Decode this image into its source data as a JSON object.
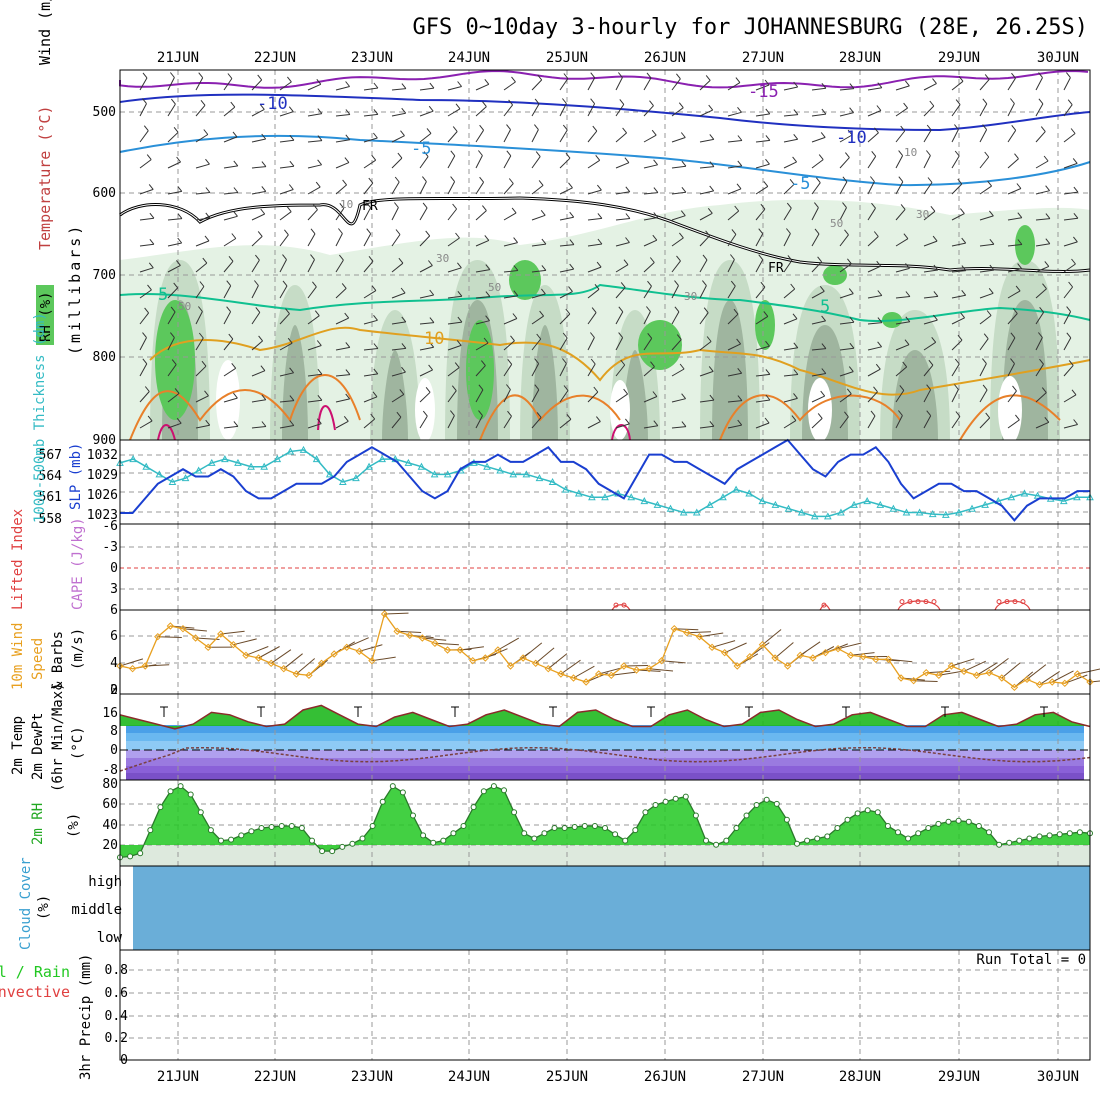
{
  "title": "GFS 0~10day 3-hourly for JOHANNESBURG (28E, 26.25S)",
  "dates": [
    "21JUN",
    "22JUN",
    "23JUN",
    "24JUN",
    "25JUN",
    "26JUN",
    "27JUN",
    "28JUN",
    "29JUN",
    "30JUN"
  ],
  "colors": {
    "rh_light": "#e4f2e4",
    "rh_mid": "#c6dcc6",
    "rh_dark": "#9fb59f",
    "rh_bright": "#5cc85c",
    "slp": "#1a3fd0",
    "thickness": "#33bbc4",
    "wind_speed": "#e8a020",
    "temp_fill": "#1fb81f",
    "rh_fill": "#22c822",
    "cloud": "#6aaed8",
    "lifted": "#e04040",
    "cape": "#c070d0"
  },
  "panels": {
    "upper": {
      "ylabel_rh": "RH (%)",
      "ylabel_temp": "Temperature (°C)",
      "ylabel_wind": "Wind (m/s)",
      "ylabel_units": "(millibars)",
      "yticks": [
        500,
        600,
        700,
        800,
        900
      ],
      "contour_labels": {
        "m15": "-15",
        "m10a": "-10",
        "m10b": "-10",
        "m5a": "-5",
        "m5b": "-5",
        "fr1": "FR",
        "fr2": "FR",
        "p5a": "5",
        "p5b": "5",
        "p10": "10",
        "rh50a": "50",
        "rh50b": "50",
        "rh30a": "30",
        "rh30b": "30",
        "rh10a": "10",
        "rh10b": "10",
        "rh50c": "50",
        "rh30c": "30"
      }
    },
    "slp": {
      "ylabel_thick": "1000-500mb Thickness (dm)",
      "ylabel_slp": "SLP (mb)",
      "yticks_slp": [
        "1032",
        "1029",
        "1026",
        "1023"
      ],
      "yticks_thick": [
        "567",
        "564",
        "561",
        "558"
      ]
    },
    "lifted": {
      "ylabel_li": "Lifted Index",
      "ylabel_cape": "CAPE (J/kg)",
      "yticks": [
        "-6",
        "-3",
        "0",
        "3",
        "6"
      ]
    },
    "wind10": {
      "ylabel1": "10m Wind",
      "ylabel2": "Speed",
      "ylabel3": "& Barbs",
      "ylabel_units": "(m/s)",
      "yticks": [
        "6",
        "4",
        "2",
        "0"
      ]
    },
    "temp2m": {
      "ylabel1": "2m Temp",
      "ylabel2": "2m DewPt",
      "ylabel3": "(6hr Min/Max)",
      "ylabel_units": "(°C)",
      "yticks": [
        "16",
        "8",
        "0",
        "-8"
      ]
    },
    "rh2m": {
      "ylabel": "2m RH",
      "ylabel_units": "(%)",
      "yticks": [
        "80",
        "60",
        "40",
        "20"
      ]
    },
    "cloud": {
      "ylabel": "Cloud Cover",
      "ylabel_units": "(%)",
      "levels": [
        "high",
        "middle",
        "low"
      ]
    },
    "precip": {
      "ylabel1": "Total / Rain",
      "ylabel2": "Convective",
      "ylabel3": "3hr Precip (mm)",
      "run_total": "Run Total = 0",
      "yticks": [
        "0.8",
        "0.6",
        "0.4",
        "0.2",
        "0"
      ]
    }
  },
  "chart_data": [
    {
      "type": "line",
      "title": "SLP (mb)",
      "x_start": "20JUN 12Z",
      "x_step_hours": 6,
      "ylim": [
        1021.5,
        1033
      ],
      "values": [
        1023,
        1023,
        1025,
        1027,
        1028,
        1029,
        1028,
        1028,
        1029,
        1028,
        1026,
        1025,
        1025,
        1026,
        1027,
        1027,
        1027,
        1028,
        1030,
        1031,
        1032,
        1031,
        1030,
        1028,
        1026,
        1025,
        1026,
        1029,
        1030,
        1030,
        1031,
        1030,
        1030,
        1031,
        1032,
        1030,
        1030,
        1029,
        1027,
        1026,
        1025,
        1028,
        1031,
        1031,
        1030,
        1030,
        1029,
        1028,
        1027,
        1029,
        1030,
        1031,
        1032,
        1033,
        1031,
        1029,
        1028,
        1030,
        1031,
        1031,
        1032,
        1030,
        1027,
        1025,
        1026,
        1027,
        1027,
        1026,
        1026,
        1025,
        1024,
        1022,
        1024,
        1025,
        1025,
        1025,
        1026,
        1026
      ]
    },
    {
      "type": "line",
      "title": "1000-500mb Thickness (dm)",
      "ylim": [
        557.5,
        568.5
      ],
      "values": [
        565.5,
        566,
        565,
        564,
        563,
        563.5,
        564.5,
        565.5,
        566,
        565.5,
        565,
        565,
        566,
        567,
        567.2,
        566,
        564,
        563,
        563.5,
        565,
        566,
        566,
        565.5,
        565,
        564,
        564,
        564.5,
        565.5,
        565,
        564.5,
        564,
        564,
        563.5,
        563,
        562,
        561.5,
        561,
        561,
        561.5,
        561,
        560.5,
        560,
        559.5,
        559,
        559,
        560,
        561,
        562,
        561.5,
        560.5,
        560,
        559.5,
        559,
        558.5,
        558.5,
        559,
        560,
        560.5,
        560,
        559.5,
        559,
        559,
        558.8,
        558.7,
        559,
        559.5,
        560,
        560.5,
        561,
        561.5,
        561.2,
        560.8,
        560.5,
        561,
        561
      ]
    },
    {
      "type": "line",
      "title": "10m Wind Speed (m/s)",
      "ylim": [
        0,
        6
      ],
      "values": [
        1.8,
        1.6,
        1.8,
        4.0,
        4.8,
        4.6,
        3.9,
        3.2,
        4.2,
        3.4,
        2.6,
        2.4,
        2.0,
        1.6,
        1.2,
        1.1,
        2.0,
        2.7,
        3.2,
        2.9,
        2.2,
        5.7,
        4.4,
        4.1,
        3.9,
        3.5,
        3.0,
        3.0,
        2.2,
        2.4,
        3.0,
        1.8,
        2.4,
        2.0,
        1.6,
        1.2,
        0.9,
        0.6,
        1.2,
        1.1,
        1.8,
        1.5,
        1.6,
        2.2,
        4.6,
        4.3,
        4.0,
        3.2,
        2.8,
        1.8,
        2.5,
        3.4,
        2.4,
        1.8,
        2.6,
        2.4,
        2.8,
        3.1,
        2.6,
        2.5,
        2.3,
        2.3,
        0.9,
        0.7,
        1.3,
        1.1,
        1.8,
        1.4,
        1.1,
        1.3,
        0.9,
        0.2,
        0.8,
        0.4,
        0.6,
        0.5,
        1.2,
        0.6
      ]
    },
    {
      "type": "area",
      "title": "2m Temp (°C)",
      "ylim": [
        -11,
        20
      ],
      "values": [
        15,
        13,
        11,
        9,
        11,
        16,
        15,
        12,
        10,
        11,
        17,
        19,
        15,
        11,
        10,
        14,
        16,
        13,
        10,
        11,
        15,
        17,
        14,
        11,
        10,
        16,
        17,
        13,
        10,
        10,
        15,
        17,
        13,
        10,
        11,
        16,
        17,
        13,
        10,
        11,
        15,
        16,
        13,
        10,
        10,
        15,
        16,
        13,
        10,
        11,
        15,
        16,
        12,
        10
      ]
    },
    {
      "type": "area",
      "title": "2m RH (%)",
      "ylim": [
        10,
        82
      ],
      "values": [
        12,
        13,
        16,
        38,
        60,
        75,
        80,
        72,
        55,
        38,
        28,
        29,
        33,
        37,
        40,
        41,
        42,
        42,
        40,
        28,
        18,
        18,
        22,
        25,
        30,
        42,
        65,
        80,
        74,
        52,
        33,
        26,
        28,
        35,
        42,
        60,
        75,
        80,
        76,
        55,
        35,
        30,
        35,
        40,
        40,
        41,
        42,
        42,
        40,
        34,
        28,
        38,
        55,
        62,
        65,
        68,
        70,
        52,
        28,
        24,
        28,
        40,
        52,
        62,
        67,
        63,
        48,
        25,
        28,
        30,
        32,
        40,
        48,
        54,
        57,
        55,
        42,
        36,
        30,
        35,
        40,
        44,
        46,
        47,
        46,
        42,
        36,
        24,
        26,
        28,
        30,
        32,
        33,
        34,
        35,
        36,
        35
      ]
    },
    {
      "type": "bar",
      "title": "3hr Precip (mm)",
      "ylim": [
        0,
        1
      ],
      "values": [
        0
      ]
    }
  ]
}
